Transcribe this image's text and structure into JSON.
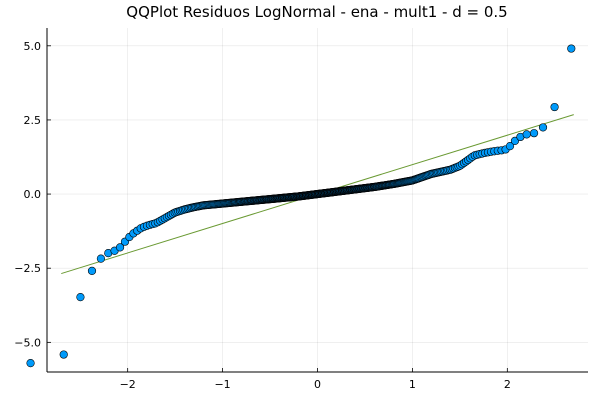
{
  "chart_data": {
    "type": "scatter",
    "title": "QQPlot Residuos LogNormal - ena - mult1 - d = 0.5",
    "xlabel": "",
    "ylabel": "",
    "xlim": [
      -2.85,
      2.85
    ],
    "ylim": [
      -6.0,
      5.6
    ],
    "xticks": [
      -2,
      -1,
      0,
      1,
      2
    ],
    "xtick_labels": [
      "−2",
      "−1",
      "0",
      "1",
      "2"
    ],
    "yticks": [
      -5,
      -2.5,
      0,
      2.5,
      5
    ],
    "ytick_labels": [
      "−5.0",
      "−2.5",
      "0.0",
      "2.5",
      "5.0"
    ],
    "grid": true,
    "legend": "none",
    "colors": {
      "points": "#009AFA",
      "point_edge": "#000000",
      "reference_line": "#6A9A33"
    },
    "reference_line": {
      "x": [
        -2.7,
        2.7
      ],
      "y": [
        -2.68,
        2.68
      ]
    },
    "anchor_points": {
      "x": [
        -2.7,
        -2.45,
        -2.3,
        -2.2,
        -2.1,
        -2.0,
        -1.93,
        -1.85,
        -1.78,
        -1.7,
        -1.6,
        -1.5,
        -1.4,
        -1.3,
        -1.2,
        -1.0,
        -0.8,
        -0.6,
        -0.4,
        -0.2,
        0.0,
        0.2,
        0.4,
        0.6,
        0.8,
        1.0,
        1.2,
        1.4,
        1.5,
        1.6,
        1.65,
        1.75,
        1.85,
        1.95,
        2.0,
        2.1,
        2.18,
        2.28,
        2.45,
        2.7
      ],
      "y": [
        -5.7,
        -2.95,
        -2.22,
        -1.98,
        -1.87,
        -1.5,
        -1.3,
        -1.13,
        -1.05,
        -0.98,
        -0.8,
        -0.62,
        -0.52,
        -0.44,
        -0.38,
        -0.32,
        -0.26,
        -0.2,
        -0.14,
        -0.08,
        0.0,
        0.08,
        0.16,
        0.24,
        0.34,
        0.46,
        0.68,
        0.82,
        0.95,
        1.18,
        1.3,
        1.38,
        1.44,
        1.48,
        1.52,
        1.86,
        2.0,
        2.05,
        2.4,
        5.2
      ]
    },
    "n_points": 400
  }
}
